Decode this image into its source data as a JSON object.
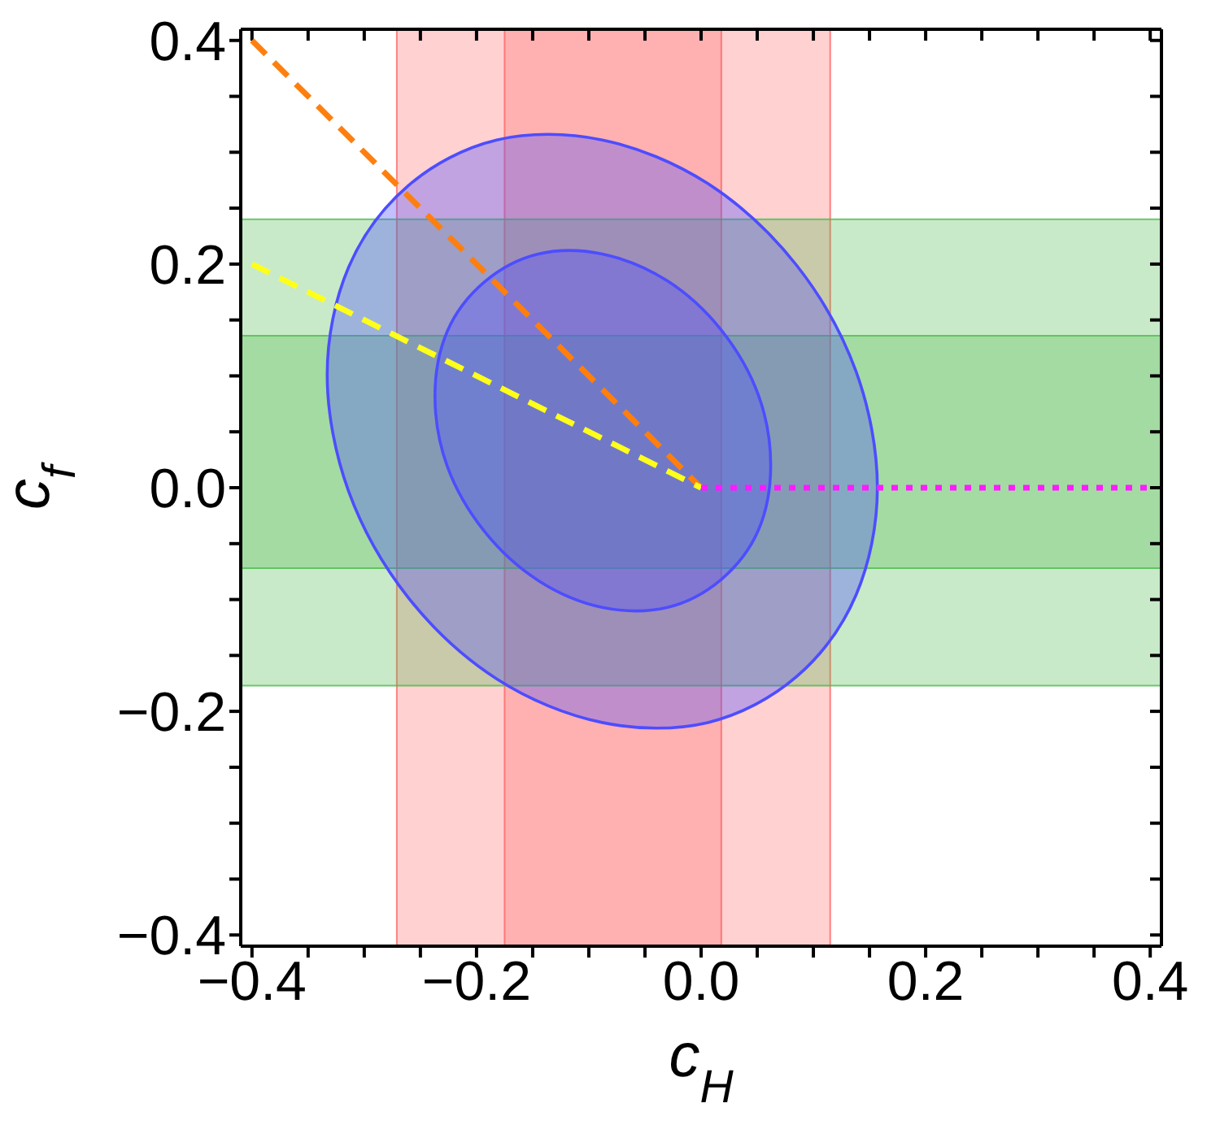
{
  "chart_data": {
    "type": "line",
    "xlabel": "c$_{H}$",
    "ylabel": "c$_{f}$",
    "xlim": [
      -0.41,
      0.41
    ],
    "ylim": [
      -0.41,
      0.41
    ],
    "xticks": [
      {
        "value": -0.4,
        "label": "−0.4"
      },
      {
        "value": -0.35,
        "label": null
      },
      {
        "value": -0.3,
        "label": null
      },
      {
        "value": -0.25,
        "label": null
      },
      {
        "value": -0.2,
        "label": "−0.2"
      },
      {
        "value": -0.15,
        "label": null
      },
      {
        "value": -0.1,
        "label": null
      },
      {
        "value": -0.05,
        "label": null
      },
      {
        "value": 0,
        "label": "0.0"
      },
      {
        "value": 0.05,
        "label": null
      },
      {
        "value": 0.1,
        "label": null
      },
      {
        "value": 0.15,
        "label": null
      },
      {
        "value": 0.2,
        "label": "0.2"
      },
      {
        "value": 0.25,
        "label": null
      },
      {
        "value": 0.3,
        "label": null
      },
      {
        "value": 0.35,
        "label": null
      },
      {
        "value": 0.4,
        "label": "0.4"
      }
    ],
    "yticks": [
      {
        "value": -0.4,
        "label": "−0.4"
      },
      {
        "value": -0.35,
        "label": null
      },
      {
        "value": -0.3,
        "label": null
      },
      {
        "value": -0.25,
        "label": null
      },
      {
        "value": -0.2,
        "label": "−0.2"
      },
      {
        "value": -0.15,
        "label": null
      },
      {
        "value": -0.1,
        "label": null
      },
      {
        "value": -0.05,
        "label": null
      },
      {
        "value": 0,
        "label": "0.0"
      },
      {
        "value": 0.05,
        "label": null
      },
      {
        "value": 0.1,
        "label": null
      },
      {
        "value": 0.15,
        "label": null
      },
      {
        "value": 0.2,
        "label": "0.2"
      },
      {
        "value": 0.25,
        "label": null
      },
      {
        "value": 0.3,
        "label": null
      },
      {
        "value": 0.35,
        "label": null
      },
      {
        "value": 0.4,
        "label": "0.4"
      }
    ],
    "bands": [
      {
        "axis": "x",
        "from": -0.271,
        "to": 0.115,
        "color": "#ff6666"
      },
      {
        "axis": "x",
        "from": -0.175,
        "to": 0.018,
        "color": "#ff6666"
      },
      {
        "axis": "y",
        "from": -0.177,
        "to": 0.24,
        "color": "#4cbb4c"
      },
      {
        "axis": "y",
        "from": -0.072,
        "to": 0.136,
        "color": "#4cbb4c"
      }
    ],
    "series": [
      {
        "type": "area",
        "color": "#4d4dff",
        "x": [
          0.157,
          0.138,
          0.085,
          0.006,
          -0.088,
          -0.182,
          -0.261,
          -0.314,
          -0.333,
          -0.314,
          -0.261,
          -0.182,
          -0.088,
          0.006,
          0.085,
          0.138,
          0.157
        ],
        "values": [
          0.0,
          0.104,
          0.199,
          0.272,
          0.311,
          0.311,
          0.27,
          0.197,
          0.101,
          -0.003,
          -0.098,
          -0.171,
          -0.21,
          -0.21,
          -0.169,
          -0.096,
          0.0
        ]
      },
      {
        "type": "area",
        "color": "#4d4dff",
        "x": [
          0.062,
          0.051,
          0.018,
          -0.03,
          -0.088,
          -0.145,
          -0.193,
          -0.226,
          -0.237,
          -0.226,
          -0.193,
          -0.145,
          -0.088,
          -0.03,
          0.018,
          0.051,
          0.062
        ],
        "values": [
          0.02,
          0.083,
          0.141,
          0.185,
          0.209,
          0.209,
          0.184,
          0.14,
          0.082,
          0.019,
          -0.039,
          -0.083,
          -0.107,
          -0.107,
          -0.082,
          -0.038,
          0.02
        ]
      },
      {
        "color": "#ff7f0e",
        "line_style": "dashed",
        "x": [
          -0.4,
          0
        ],
        "values": [
          0.4,
          0
        ]
      },
      {
        "color": "#ffff1a",
        "line_style": "dashed",
        "x": [
          -0.4,
          0
        ],
        "values": [
          0.2,
          0
        ]
      },
      {
        "color": "#ff1aff",
        "line_style": "dotted",
        "x": [
          0,
          0.4
        ],
        "values": [
          0,
          0
        ]
      }
    ]
  }
}
